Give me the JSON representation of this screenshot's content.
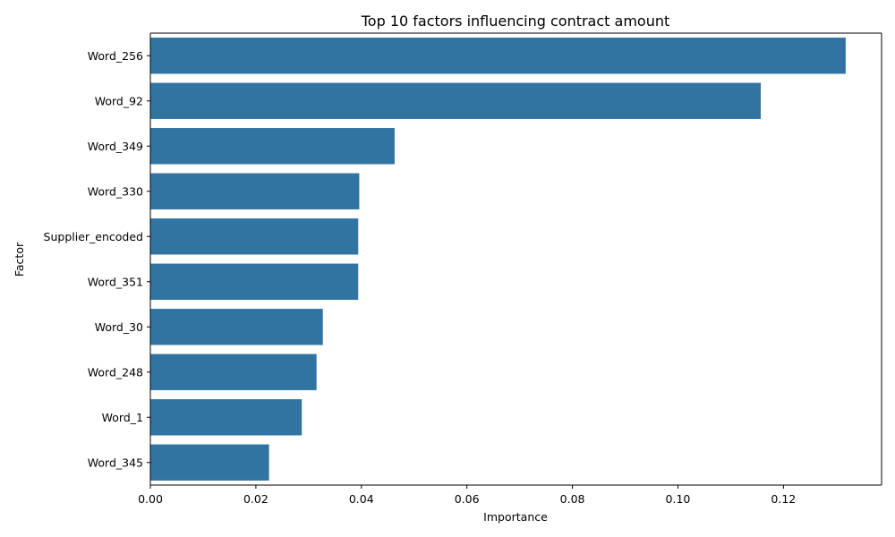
{
  "chart_data": {
    "type": "bar",
    "orientation": "horizontal",
    "title": "Top 10 factors influencing contract amount",
    "xlabel": "Importance",
    "ylabel": "Factor",
    "categories": [
      "Word_256",
      "Word_92",
      "Word_349",
      "Word_330",
      "Supplier_encoded",
      "Word_351",
      "Word_30",
      "Word_248",
      "Word_1",
      "Word_345"
    ],
    "values": [
      0.1318,
      0.1157,
      0.0463,
      0.0396,
      0.0394,
      0.0394,
      0.0327,
      0.0315,
      0.0287,
      0.0225
    ],
    "xlim": [
      0,
      0.1386
    ],
    "xticks": [
      "0.00",
      "0.02",
      "0.04",
      "0.06",
      "0.08",
      "0.10",
      "0.12"
    ],
    "xtick_values": [
      0,
      0.02,
      0.04,
      0.06,
      0.08,
      0.1,
      0.12
    ],
    "grid": false,
    "bar_color": "#3274a1"
  }
}
